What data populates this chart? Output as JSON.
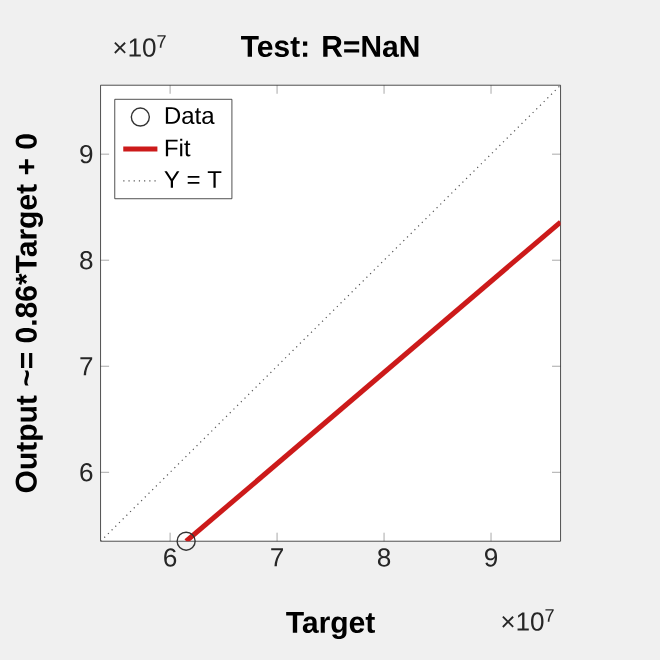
{
  "chart_data": {
    "type": "line",
    "title": "Test: R=NaN",
    "xlabel": "Target",
    "ylabel": "Output ~= 0.86*Target + 0",
    "annotations": [
      "×10$^{7}$",
      "×10$^{7}$"
    ],
    "series": [
      {
        "name": "Data",
        "type": "scatter",
        "marker": "circle",
        "color": "#333333",
        "x": [
          6.15
        ],
        "values": [
          5.35
        ]
      },
      {
        "name": "Fit",
        "color": "#cc1a1a",
        "x": [
          6.15,
          9.65
        ],
        "values": [
          5.35,
          8.36
        ]
      },
      {
        "name": "Y = T",
        "line_style": "dotted",
        "color": "#555555",
        "x": [
          5.35,
          9.65
        ],
        "values": [
          5.35,
          9.65
        ]
      }
    ],
    "xlim": [
      5.35,
      9.65
    ],
    "ylim": [
      5.35,
      9.65
    ],
    "xticks": [
      6,
      7,
      8,
      9
    ],
    "yticks": [
      6,
      7,
      8,
      9
    ],
    "legend": "top left"
  }
}
